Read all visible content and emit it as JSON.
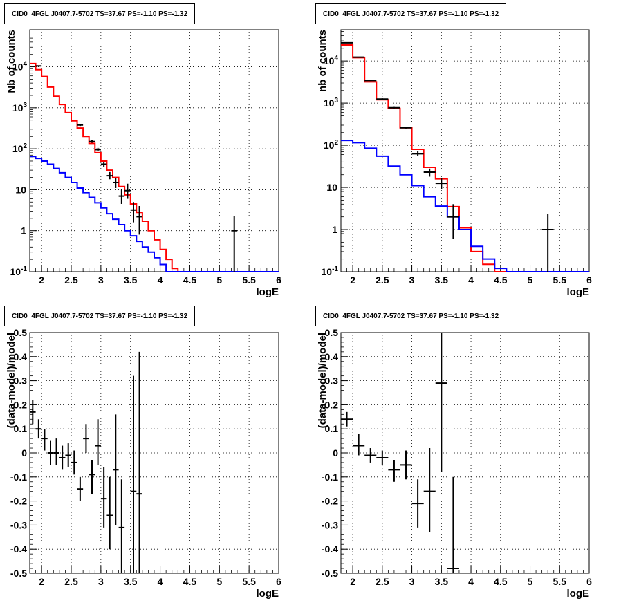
{
  "chart_data": [
    {
      "type": "line",
      "title": "CID0_4FGL J0407.7-5702 TS=37.67 PS=-1.10 PS=-1.32",
      "xlabel": "logE",
      "ylabel": "Nb of counts",
      "yscale": "log",
      "xlim": [
        1.8,
        6.0
      ],
      "ylim": [
        0.1,
        80000
      ],
      "grid": true,
      "xticks": [
        "2",
        "2.5",
        "3",
        "3.5",
        "4",
        "4.5",
        "5",
        "5.5",
        "6"
      ],
      "yticks": [
        "10^-1",
        "1",
        "10",
        "10^2",
        "10^3",
        "10^4"
      ],
      "series": [
        {
          "color": "#ff0000",
          "type": "step",
          "bin_width": 0.1,
          "x": [
            1.85,
            1.95,
            2.05,
            2.15,
            2.25,
            2.35,
            2.45,
            2.55,
            2.65,
            2.75,
            2.85,
            2.95,
            3.05,
            3.15,
            3.25,
            3.35,
            3.45,
            3.55,
            3.65,
            3.75,
            3.85,
            3.95,
            4.05,
            4.15,
            4.25,
            4.35,
            4.45,
            4.55,
            4.65,
            4.75,
            4.85,
            4.95,
            5.05,
            5.15,
            5.25,
            5.35,
            5.45,
            5.55,
            5.65,
            5.75,
            5.85,
            5.95
          ],
          "values": [
            12000,
            8500,
            5800,
            3200,
            1900,
            1200,
            760,
            480,
            320,
            200,
            135,
            80,
            50,
            30,
            20,
            12,
            7.5,
            4.5,
            2.8,
            1.7,
            1.0,
            0.6,
            0.35,
            0.2,
            0.12,
            0.1,
            0.1,
            0.1,
            0.1,
            0.1,
            0.1,
            0.1,
            0.1,
            0.1,
            0.1,
            0.1,
            0.1,
            0.1,
            0.1,
            0.1,
            0.1,
            0.1
          ]
        },
        {
          "color": "#0000ff",
          "type": "step",
          "bin_width": 0.1,
          "x": [
            1.85,
            1.95,
            2.05,
            2.15,
            2.25,
            2.35,
            2.45,
            2.55,
            2.65,
            2.75,
            2.85,
            2.95,
            3.05,
            3.15,
            3.25,
            3.35,
            3.45,
            3.55,
            3.65,
            3.75,
            3.85,
            3.95,
            4.05,
            4.15,
            4.25,
            4.35,
            4.45,
            4.55,
            4.65,
            4.75,
            4.85,
            4.95,
            5.05,
            5.15,
            5.25,
            5.35,
            5.45,
            5.55,
            5.65,
            5.75,
            5.85,
            5.95
          ],
          "values": [
            65,
            58,
            50,
            42,
            33,
            26,
            20,
            15,
            11,
            8.5,
            6.5,
            4.8,
            3.6,
            2.6,
            1.9,
            1.4,
            1.0,
            0.75,
            0.55,
            0.4,
            0.3,
            0.22,
            0.15,
            0.1,
            0.1,
            0.1,
            0.1,
            0.1,
            0.1,
            0.1,
            0.1,
            0.1,
            0.1,
            0.1,
            0.1,
            0.1,
            0.1,
            0.1,
            0.1,
            0.1,
            0.1,
            0.1
          ]
        },
        {
          "color": "#000000",
          "type": "errorbar",
          "x": [
            1.95,
            2.65,
            2.85,
            2.95,
            3.05,
            3.15,
            3.25,
            3.35,
            3.45,
            3.55,
            3.65,
            5.25
          ],
          "values": [
            10500,
            380,
            150,
            95,
            42,
            22,
            15,
            7,
            9.5,
            3.2,
            2.2,
            1
          ],
          "xerr": [
            0.05,
            0.05,
            0.05,
            0.05,
            0.05,
            0.05,
            0.05,
            0.05,
            0.05,
            0.05,
            0.05,
            0.05
          ],
          "ylow": [
            10300,
            360,
            140,
            88,
            36,
            18,
            11,
            4.5,
            6,
            1.6,
            0.8,
            0.1
          ],
          "yhigh": [
            10700,
            400,
            165,
            105,
            48,
            27,
            19,
            10,
            14,
            5,
            4,
            2.3
          ]
        }
      ]
    },
    {
      "type": "line",
      "title": "CID0_4FGL J0407.7-5702 TS=37.67 PS=-1.10 PS=-1.32",
      "xlabel": "logE",
      "ylabel": "nb of counts",
      "yscale": "log",
      "xlim": [
        1.8,
        6.0
      ],
      "ylim": [
        0.1,
        55000
      ],
      "grid": true,
      "xticks": [
        "2",
        "2.5",
        "3",
        "3.5",
        "4",
        "4.5",
        "5",
        "5.5",
        "6"
      ],
      "yticks": [
        "10^-1",
        "1",
        "10",
        "10^2",
        "10^3",
        "10^4"
      ],
      "series": [
        {
          "color": "#ff0000",
          "type": "step",
          "bin_width": 0.2,
          "x": [
            1.9,
            2.1,
            2.3,
            2.5,
            2.7,
            2.9,
            3.1,
            3.3,
            3.5,
            3.7,
            3.9,
            4.1,
            4.3,
            4.5,
            4.7,
            4.9,
            5.1,
            5.3,
            5.5,
            5.7,
            5.9
          ],
          "values": [
            24000,
            12000,
            3200,
            1200,
            750,
            260,
            80,
            30,
            16,
            3.5,
            1.1,
            0.3,
            0.15,
            0.1,
            0.1,
            0.1,
            0.1,
            0.1,
            0.1,
            0.1,
            0.1
          ],
          "xstart": 1.8
        },
        {
          "color": "#0000ff",
          "type": "step",
          "bin_width": 0.2,
          "x": [
            1.9,
            2.1,
            2.3,
            2.5,
            2.7,
            2.9,
            3.1,
            3.3,
            3.5,
            3.7,
            3.9,
            4.1,
            4.3,
            4.5,
            4.7,
            4.9,
            5.1,
            5.3,
            5.5,
            5.7,
            5.9
          ],
          "values": [
            130,
            115,
            85,
            55,
            32,
            20,
            11,
            6,
            3.6,
            2.0,
            1.0,
            0.4,
            0.2,
            0.12,
            0.1,
            0.1,
            0.1,
            0.1,
            0.1,
            0.1,
            0.1
          ]
        },
        {
          "color": "#000000",
          "type": "errorbar",
          "x": [
            1.9,
            2.1,
            2.3,
            2.5,
            2.7,
            2.9,
            3.1,
            3.3,
            3.5,
            3.7,
            5.3
          ],
          "values": [
            27000,
            12300,
            3450,
            1250,
            780,
            260,
            63,
            23,
            12.5,
            2.0,
            1.0
          ],
          "xerr": [
            0.1,
            0.1,
            0.1,
            0.1,
            0.1,
            0.1,
            0.1,
            0.1,
            0.1,
            0.1,
            0.1
          ],
          "ylow": [
            26400,
            12000,
            3350,
            1200,
            750,
            250,
            55,
            18,
            9,
            0.6,
            0.1
          ],
          "yhigh": [
            27600,
            12600,
            3550,
            1300,
            810,
            275,
            72,
            28,
            17,
            4,
            2.3
          ]
        }
      ]
    },
    {
      "type": "scatter",
      "title": "CID0_4FGL J0407.7-5702 TS=37.67 PS=-1.10 PS=-1.32",
      "xlabel": "logE",
      "ylabel": "(data-model)/model",
      "xlim": [
        1.8,
        6.0
      ],
      "ylim": [
        -0.5,
        0.5
      ],
      "grid": true,
      "xticks": [
        "2",
        "2.5",
        "3",
        "3.5",
        "4",
        "4.5",
        "5",
        "5.5",
        "6"
      ],
      "yticks": [
        "-0.5",
        "-0.4",
        "-0.3",
        "-0.2",
        "-0.1",
        "0",
        "0.1",
        "0.2",
        "0.3",
        "0.4",
        "0.5"
      ],
      "series": [
        {
          "color": "#000000",
          "type": "errorbar",
          "x": [
            1.85,
            1.95,
            2.05,
            2.15,
            2.25,
            2.35,
            2.45,
            2.55,
            2.65,
            2.75,
            2.85,
            2.95,
            3.05,
            3.15,
            3.25,
            3.35,
            3.55,
            3.65
          ],
          "values": [
            0.17,
            0.1,
            0.06,
            0.0,
            0.0,
            -0.02,
            -0.01,
            -0.04,
            -0.15,
            0.06,
            -0.09,
            0.03,
            -0.19,
            -0.26,
            -0.07,
            -0.31,
            -0.16,
            -0.17
          ],
          "xerr": [
            0.05,
            0.05,
            0.05,
            0.05,
            0.05,
            0.05,
            0.05,
            0.05,
            0.05,
            0.05,
            0.05,
            0.05,
            0.05,
            0.05,
            0.05,
            0.05,
            0.05,
            0.05
          ],
          "ylow": [
            0.12,
            0.06,
            0.01,
            -0.05,
            -0.05,
            -0.07,
            -0.06,
            -0.09,
            -0.2,
            0.0,
            -0.17,
            -0.05,
            -0.31,
            -0.4,
            -0.3,
            -0.5,
            -0.5,
            -0.5
          ],
          "yhigh": [
            0.22,
            0.14,
            0.1,
            0.05,
            0.06,
            0.03,
            0.04,
            0.01,
            -0.1,
            0.12,
            -0.03,
            0.14,
            -0.06,
            -0.1,
            0.16,
            -0.11,
            0.32,
            0.42
          ]
        }
      ]
    },
    {
      "type": "scatter",
      "title": "CID0_4FGL J0407.7-5702 TS=37.67 PS=-1.10 PS=-1.32",
      "xlabel": "logE",
      "ylabel": "(data-model)/model",
      "xlim": [
        1.8,
        6.0
      ],
      "ylim": [
        -0.5,
        0.5
      ],
      "grid": true,
      "xticks": [
        "2",
        "2.5",
        "3",
        "3.5",
        "4",
        "4.5",
        "5",
        "5.5",
        "6"
      ],
      "yticks": [
        "-0.5",
        "-0.4",
        "-0.3",
        "-0.2",
        "-0.1",
        "0",
        "0.1",
        "0.2",
        "0.3",
        "0.4",
        "0.5"
      ],
      "series": [
        {
          "color": "#000000",
          "type": "errorbar",
          "x": [
            1.9,
            2.1,
            2.3,
            2.5,
            2.7,
            2.9,
            3.1,
            3.3,
            3.5,
            3.7
          ],
          "values": [
            0.14,
            0.03,
            -0.01,
            -0.02,
            -0.07,
            -0.05,
            -0.21,
            -0.16,
            0.29,
            -0.48
          ],
          "xerr": [
            0.1,
            0.1,
            0.1,
            0.1,
            0.1,
            0.1,
            0.1,
            0.1,
            0.1,
            0.1
          ],
          "ylow": [
            0.11,
            -0.01,
            -0.04,
            -0.05,
            -0.12,
            -0.11,
            -0.31,
            -0.33,
            -0.08,
            -0.5
          ],
          "yhigh": [
            0.17,
            0.08,
            0.02,
            0.01,
            -0.03,
            0.01,
            -0.11,
            0.02,
            0.5,
            -0.1
          ]
        }
      ]
    }
  ]
}
